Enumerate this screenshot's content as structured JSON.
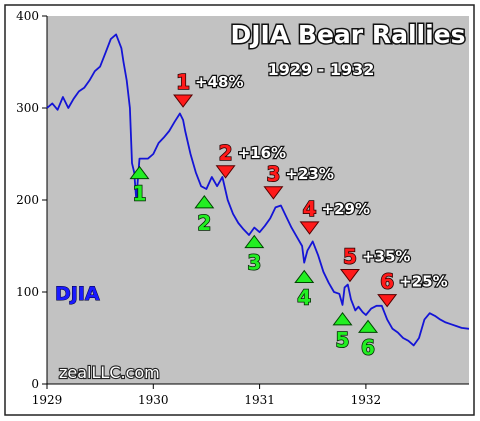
{
  "chart_data": {
    "type": "line",
    "title": "DJIA Bear Rallies",
    "subtitle": "1929 - 1932",
    "series_label": "DJIA",
    "watermark": "zealLLC.com",
    "xlim": [
      1929.0,
      1932.97
    ],
    "ylim": [
      0,
      400
    ],
    "x_ticks": [
      {
        "value": 1929,
        "label": "1929"
      },
      {
        "value": 1930,
        "label": "1930"
      },
      {
        "value": 1931,
        "label": "1931"
      },
      {
        "value": 1932,
        "label": "1932"
      }
    ],
    "y_ticks": [
      {
        "value": 0,
        "label": "0"
      },
      {
        "value": 100,
        "label": "100"
      },
      {
        "value": 200,
        "label": "200"
      },
      {
        "value": 300,
        "label": "300"
      },
      {
        "value": 400,
        "label": "400"
      }
    ],
    "grid": false,
    "colors": {
      "background": "#c2c2c2",
      "line": "#1414d6",
      "rally_marker": "#ff1a1a",
      "low_marker": "#22ee22"
    },
    "series": [
      {
        "name": "DJIA",
        "x": [
          1929.0,
          1929.05,
          1929.1,
          1929.15,
          1929.2,
          1929.25,
          1929.3,
          1929.35,
          1929.4,
          1929.45,
          1929.5,
          1929.55,
          1929.6,
          1929.65,
          1929.7,
          1929.72,
          1929.75,
          1929.78,
          1929.8,
          1929.82,
          1929.84,
          1929.86,
          1929.87,
          1929.9,
          1929.95,
          1930.0,
          1930.05,
          1930.1,
          1930.15,
          1930.2,
          1930.25,
          1930.28,
          1930.3,
          1930.35,
          1930.4,
          1930.45,
          1930.5,
          1930.55,
          1930.6,
          1930.65,
          1930.7,
          1930.75,
          1930.8,
          1930.85,
          1930.9,
          1930.95,
          1931.0,
          1931.05,
          1931.1,
          1931.15,
          1931.2,
          1931.25,
          1931.3,
          1931.35,
          1931.4,
          1931.42,
          1931.45,
          1931.5,
          1931.55,
          1931.6,
          1931.65,
          1931.7,
          1931.75,
          1931.78,
          1931.8,
          1931.83,
          1931.86,
          1931.9,
          1931.93,
          1931.97,
          1932.0,
          1932.05,
          1932.1,
          1932.15,
          1932.2,
          1932.25,
          1932.3,
          1932.35,
          1932.4,
          1932.45,
          1932.5,
          1932.55,
          1932.6,
          1932.65,
          1932.7,
          1932.75,
          1932.8,
          1932.85,
          1932.9,
          1932.97
        ],
        "y": [
          300,
          305,
          298,
          312,
          300,
          310,
          318,
          322,
          330,
          340,
          345,
          360,
          375,
          380,
          365,
          350,
          330,
          300,
          240,
          230,
          200,
          230,
          245,
          245,
          245,
          250,
          262,
          268,
          275,
          285,
          294,
          287,
          275,
          250,
          230,
          215,
          212,
          225,
          215,
          225,
          200,
          185,
          175,
          168,
          162,
          170,
          165,
          172,
          180,
          192,
          194,
          182,
          170,
          160,
          150,
          132,
          145,
          155,
          140,
          122,
          110,
          100,
          98,
          86,
          105,
          108,
          92,
          80,
          84,
          78,
          75,
          82,
          85,
          85,
          70,
          60,
          56,
          50,
          47,
          42,
          50,
          70,
          77,
          74,
          70,
          67,
          65,
          63,
          61,
          60
        ]
      }
    ],
    "rallies": [
      {
        "label": "1",
        "gain": "+48%",
        "x": 1930.28
      },
      {
        "label": "2",
        "gain": "+16%",
        "x": 1930.68
      },
      {
        "label": "3",
        "gain": "+23%",
        "x": 1931.13
      },
      {
        "label": "4",
        "gain": "+29%",
        "x": 1931.47
      },
      {
        "label": "5",
        "gain": "+35%",
        "x": 1931.85
      },
      {
        "label": "6",
        "gain": "+25%",
        "x": 1932.2
      }
    ],
    "lows": [
      {
        "label": "1",
        "x": 1929.87
      },
      {
        "label": "2",
        "x": 1930.48
      },
      {
        "label": "3",
        "x": 1930.95
      },
      {
        "label": "4",
        "x": 1931.42
      },
      {
        "label": "5",
        "x": 1931.78
      },
      {
        "label": "6",
        "x": 1932.02
      }
    ]
  }
}
